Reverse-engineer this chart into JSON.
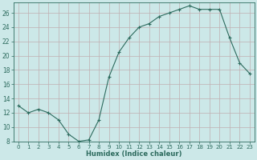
{
  "x": [
    0,
    1,
    2,
    3,
    4,
    5,
    6,
    7,
    8,
    9,
    10,
    11,
    12,
    13,
    14,
    15,
    16,
    17,
    18,
    19,
    20,
    21,
    22,
    23
  ],
  "y": [
    13,
    12,
    12.5,
    12,
    11,
    9,
    8,
    8.2,
    11,
    17,
    20.5,
    22.5,
    24,
    24.5,
    25.5,
    26,
    26.5,
    27,
    26.5,
    26.5,
    26.5,
    22.5,
    19,
    17.5
  ],
  "line_color": "#2d6b5e",
  "marker_color": "#2d6b5e",
  "bg_color": "#cce8e8",
  "grid_color": "#c0aeb0",
  "xlabel": "Humidex (Indice chaleur)",
  "xlim": [
    -0.5,
    23.5
  ],
  "ylim": [
    8,
    27.5
  ],
  "yticks": [
    8,
    10,
    12,
    14,
    16,
    18,
    20,
    22,
    24,
    26
  ],
  "xticks": [
    0,
    1,
    2,
    3,
    4,
    5,
    6,
    7,
    8,
    9,
    10,
    11,
    12,
    13,
    14,
    15,
    16,
    17,
    18,
    19,
    20,
    21,
    22,
    23
  ]
}
